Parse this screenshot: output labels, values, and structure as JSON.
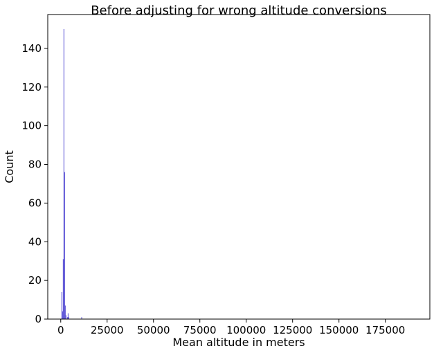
{
  "chart_data": {
    "type": "bar",
    "title": "Before adjusting for wrong altitude conversions",
    "xlabel": "Mean altitude in meters",
    "ylabel": "Count",
    "xlim": [
      -7000,
      199000
    ],
    "ylim": [
      0,
      157.5
    ],
    "xticks": [
      0,
      25000,
      50000,
      75000,
      100000,
      125000,
      150000,
      175000
    ],
    "xtick_labels": [
      "0",
      "25000",
      "50000",
      "75000",
      "100000",
      "125000",
      "150000",
      "175000"
    ],
    "yticks": [
      0,
      20,
      40,
      60,
      80,
      100,
      120,
      140
    ],
    "ytick_labels": [
      "0",
      "20",
      "40",
      "60",
      "80",
      "100",
      "120",
      "140"
    ],
    "grid": false,
    "bar_color": "#3b30cc",
    "bin_width": 380,
    "bins": [
      {
        "x": 400,
        "count": 14
      },
      {
        "x": 780,
        "count": 4
      },
      {
        "x": 1150,
        "count": 31
      },
      {
        "x": 1520,
        "count": 150
      },
      {
        "x": 1900,
        "count": 76
      },
      {
        "x": 2270,
        "count": 7
      },
      {
        "x": 2650,
        "count": 2
      },
      {
        "x": 3400,
        "count": 1
      },
      {
        "x": 3780,
        "count": 3
      },
      {
        "x": 4150,
        "count": 1
      },
      {
        "x": 11100,
        "count": 1
      }
    ]
  }
}
